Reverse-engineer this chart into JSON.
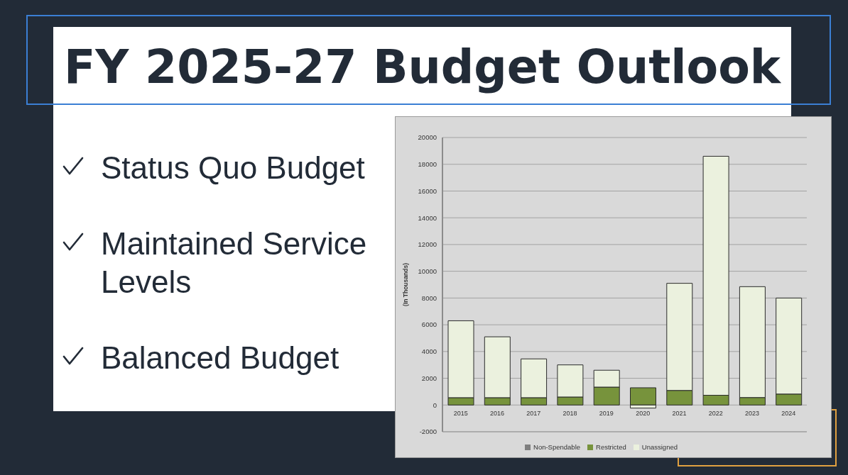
{
  "chart_data": {
    "type": "bar",
    "title": "FY 2025-27 Budget Outlook",
    "annotations": [
      "Status Quo Budget",
      "Maintained Service Levels",
      "Balanced Budget"
    ],
    "ylabel": "(In Thousands)",
    "categories": [
      "2015",
      "2016",
      "2017",
      "2018",
      "2019",
      "2020",
      "2021",
      "2022",
      "2023",
      "2024"
    ],
    "series": [
      {
        "name": "Non-Spendable",
        "color": "#7f7f7f",
        "values": [
          0,
          0,
          0,
          0,
          0,
          0,
          0,
          0,
          0,
          0
        ]
      },
      {
        "name": "Restricted",
        "color": "#77933c",
        "values": [
          550,
          550,
          550,
          600,
          1340,
          1290,
          1090,
          730,
          560,
          820
        ]
      },
      {
        "name": "Unassigned",
        "color": "#ebf1de",
        "values": [
          5750,
          4550,
          2900,
          2400,
          1260,
          -230,
          8010,
          17870,
          8290,
          7180
        ]
      }
    ],
    "stacked": true,
    "ylim": [
      -2000,
      20000
    ],
    "yticks": [
      -2000,
      0,
      2000,
      4000,
      6000,
      8000,
      10000,
      12000,
      14000,
      16000,
      18000,
      20000
    ],
    "grid": "y",
    "legend": "bottom"
  }
}
